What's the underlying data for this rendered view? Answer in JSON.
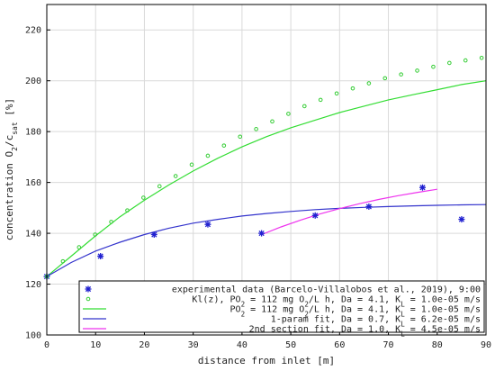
{
  "chart_data": {
    "type": "line",
    "xlabel": "distance from inlet [m]",
    "ylabel": "concentration O2/csat [%]",
    "xlim": [
      0,
      90
    ],
    "ylim": [
      100,
      230
    ],
    "xticks": [
      0,
      10,
      20,
      30,
      40,
      50,
      60,
      70,
      80,
      90
    ],
    "yticks": [
      100,
      120,
      140,
      160,
      180,
      200,
      220
    ],
    "grid": true,
    "legend_position": "bottom-right",
    "series": [
      {
        "name": "experimental data (Barcelo-Villalobos et al., 2019), 9:00",
        "kind": "scatter",
        "marker": "asterisk",
        "color": "#2020d0",
        "x": [
          0,
          11,
          22,
          33,
          44,
          55,
          66,
          77,
          85
        ],
        "y": [
          123,
          131,
          139.5,
          143.5,
          140,
          147,
          150.5,
          158,
          145.5
        ]
      },
      {
        "name": "Kl(z), PO2 = 112 mg O2/L h, Da = 4.1, KL = 1.0e-05 m/s",
        "kind": "scatter",
        "marker": "circle",
        "color": "#33cc33",
        "x": [
          0,
          3.3,
          6.6,
          9.9,
          13.2,
          16.5,
          19.8,
          23.1,
          26.4,
          29.7,
          33,
          36.3,
          39.6,
          42.9,
          46.2,
          49.5,
          52.8,
          56.1,
          59.4,
          62.7,
          66,
          69.3,
          72.6,
          75.9,
          79.2,
          82.5,
          85.8,
          89.1
        ],
        "y": [
          123,
          129,
          134.5,
          139.5,
          144.5,
          149,
          154,
          158.5,
          162.5,
          167,
          170.5,
          174.5,
          178,
          181,
          184,
          187,
          190,
          192.5,
          195,
          197,
          199,
          201,
          202.5,
          204,
          205.5,
          207,
          208,
          209
        ]
      },
      {
        "name": "PO2 = 112 mg O2/L h, Da = 4.1, KL = 1.0e-05 m/s",
        "kind": "line",
        "color": "#33dd33",
        "x": [
          0,
          5,
          10,
          15,
          20,
          25,
          30,
          35,
          40,
          45,
          50,
          55,
          60,
          65,
          70,
          75,
          80,
          85,
          90
        ],
        "y": [
          123,
          131,
          139,
          146.5,
          153,
          159,
          164.5,
          169.5,
          174,
          178,
          181.5,
          184.5,
          187.5,
          190,
          192.5,
          194.5,
          196.5,
          198.5,
          200
        ]
      },
      {
        "name": "1-param fit, Da = 0.7, KL = 6.2e-05 m/s",
        "kind": "line",
        "color": "#3333cc",
        "x": [
          0,
          5,
          10,
          15,
          20,
          25,
          30,
          35,
          40,
          45,
          50,
          55,
          60,
          65,
          70,
          75,
          80,
          85,
          90
        ],
        "y": [
          123,
          128.5,
          133,
          136.5,
          139.5,
          142,
          144,
          145.5,
          146.8,
          147.8,
          148.6,
          149.3,
          149.8,
          150.2,
          150.5,
          150.8,
          151,
          151.2,
          151.3
        ]
      },
      {
        "name": "2nd section fit, Da = 1.0, KL = 4.5e-05 m/s",
        "kind": "line",
        "color": "#ee33ee",
        "x": [
          44,
          48,
          52,
          56,
          60,
          64,
          68,
          72,
          76,
          80
        ],
        "y": [
          139.5,
          142.5,
          145.2,
          147.6,
          149.7,
          151.6,
          153.3,
          154.8,
          156.1,
          157.3
        ]
      }
    ],
    "legend": [
      {
        "key": "exp",
        "text": "experimental data (Barcelo-Villalobos et al., 2019), 9:00"
      },
      {
        "key": "klz",
        "parts": [
          "Kl(z), PO",
          "2",
          " = 112 mg O",
          "2",
          "/L h, Da = 4.1, K",
          "L",
          " = 1.0e-05 m/s"
        ]
      },
      {
        "key": "po2",
        "parts": [
          "PO",
          "2",
          " = 112 mg O",
          "2",
          "/L h, Da = 4.1, K",
          "L",
          " = 1.0e-05 m/s"
        ]
      },
      {
        "key": "fit1",
        "parts": [
          "1-param fit, Da = 0.7, K",
          "L",
          " = 6.2e-05 m/s"
        ]
      },
      {
        "key": "fit2",
        "parts": [
          "2nd section fit, Da = 1.0, K",
          "L",
          " = 4.5e-05 m/s"
        ]
      }
    ],
    "ylabel_parts": [
      "concentration O",
      "2",
      "/c",
      "sat",
      " [%]"
    ]
  }
}
